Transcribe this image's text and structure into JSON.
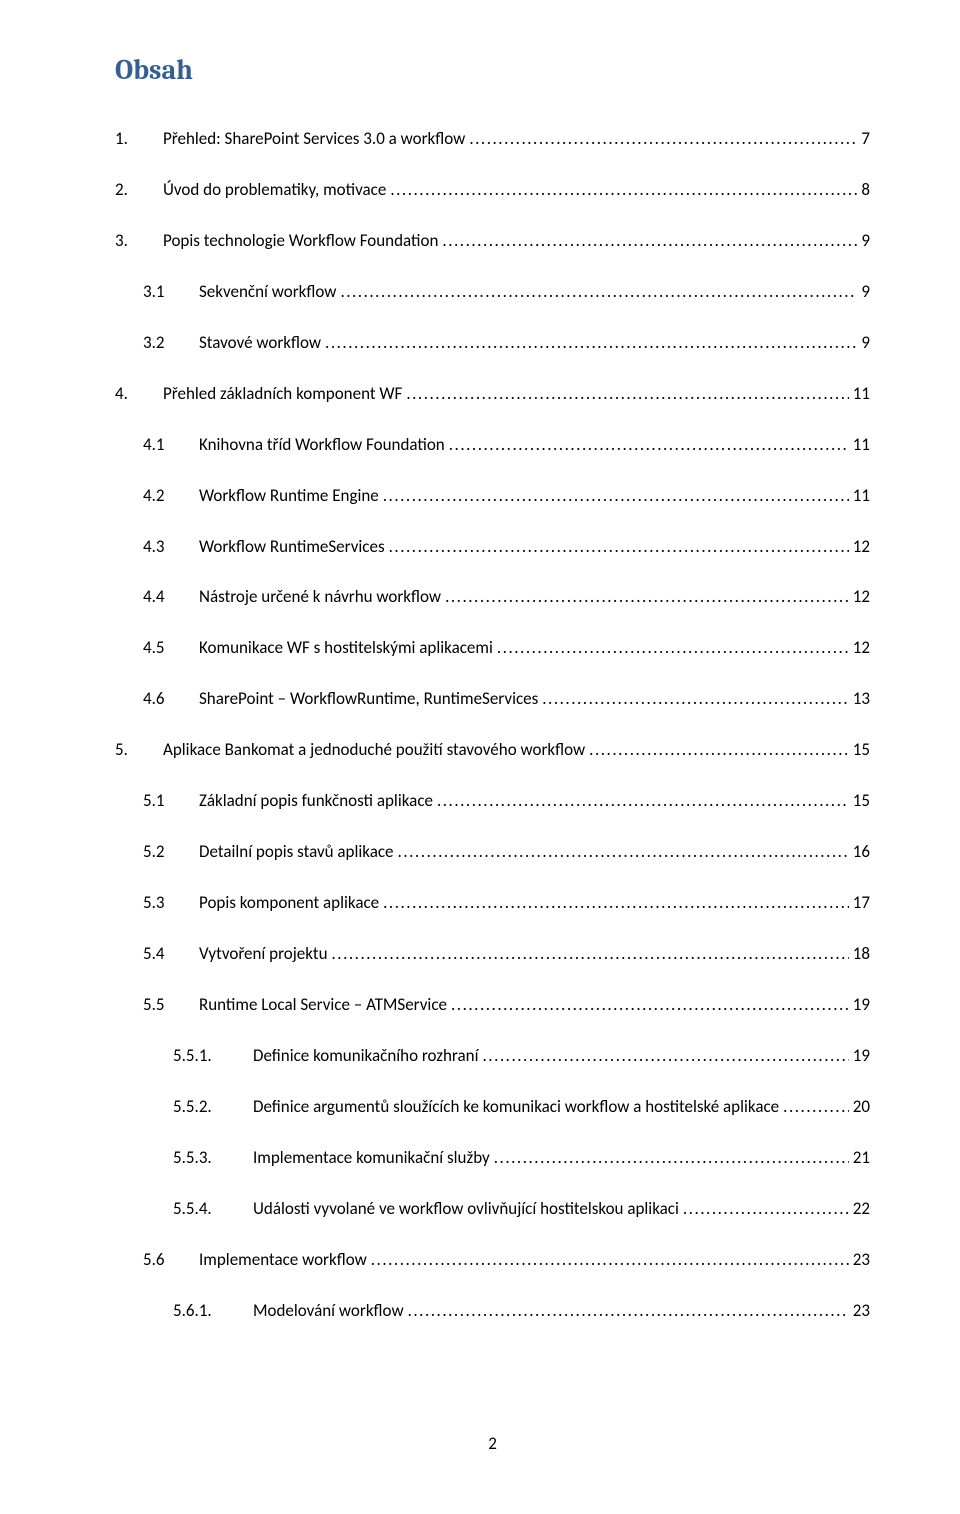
{
  "title": "Obsah",
  "colors": {
    "title_color": "#365f91",
    "text_color": "#000000",
    "background": "#ffffff"
  },
  "typography": {
    "title_fontsize_pt": 18,
    "body_fontsize_pt": 11,
    "title_font": "Cambria",
    "body_font": "Calibri"
  },
  "toc": [
    {
      "level": 1,
      "num": "1.",
      "label": "Přehled: SharePoint Services 3.0 a workflow",
      "page": "7"
    },
    {
      "level": 1,
      "num": "2.",
      "label": "Úvod do problematiky, motivace",
      "page": "8"
    },
    {
      "level": 1,
      "num": "3.",
      "label": "Popis technologie Workflow Foundation",
      "page": "9"
    },
    {
      "level": 2,
      "num": "3.1",
      "label": "Sekvenční workflow",
      "page": "9"
    },
    {
      "level": 2,
      "num": "3.2",
      "label": "Stavové workflow",
      "page": "9"
    },
    {
      "level": 1,
      "num": "4.",
      "label": "Přehled základních komponent WF",
      "page": "11"
    },
    {
      "level": 2,
      "num": "4.1",
      "label": "Knihovna tříd Workflow Foundation",
      "page": "11"
    },
    {
      "level": 2,
      "num": "4.2",
      "label": "Workflow Runtime Engine",
      "page": "11"
    },
    {
      "level": 2,
      "num": "4.3",
      "label": "Workflow RuntimeServices",
      "page": "12"
    },
    {
      "level": 2,
      "num": "4.4",
      "label": "Nástroje určené k návrhu workflow",
      "page": "12"
    },
    {
      "level": 2,
      "num": "4.5",
      "label": "Komunikace WF s hostitelskými aplikacemi",
      "page": "12"
    },
    {
      "level": 2,
      "num": "4.6",
      "label": "SharePoint – WorkflowRuntime, RuntimeServices",
      "page": "13"
    },
    {
      "level": 1,
      "num": "5.",
      "label": "Aplikace Bankomat a jednoduché použití stavového workflow",
      "page": "15"
    },
    {
      "level": 2,
      "num": "5.1",
      "label": "Základní popis funkčnosti aplikace",
      "page": "15"
    },
    {
      "level": 2,
      "num": "5.2",
      "label": "Detailní popis stavů aplikace",
      "page": "16"
    },
    {
      "level": 2,
      "num": "5.3",
      "label": "Popis komponent aplikace",
      "page": "17"
    },
    {
      "level": 2,
      "num": "5.4",
      "label": "Vytvoření projektu",
      "page": "18"
    },
    {
      "level": 2,
      "num": "5.5",
      "label": "Runtime Local Service – ATMService",
      "page": "19"
    },
    {
      "level": 3,
      "num": "5.5.1.",
      "label": "Definice komunikačního rozhraní",
      "page": "19"
    },
    {
      "level": 3,
      "num": "5.5.2.",
      "label": "Definice argumentů sloužících ke komunikaci workflow a hostitelské aplikace",
      "page": "20"
    },
    {
      "level": 3,
      "num": "5.5.3.",
      "label": "Implementace komunikační služby",
      "page": "21"
    },
    {
      "level": 3,
      "num": "5.5.4.",
      "label": "Události vyvolané ve workflow ovlivňující hostitelskou aplikaci",
      "page": "22"
    },
    {
      "level": 2,
      "num": "5.6",
      "label": "Implementace workflow",
      "page": "23"
    },
    {
      "level": 3,
      "num": "5.6.1.",
      "label": "Modelování workflow",
      "page": "23"
    }
  ],
  "footer_page_number": "2"
}
